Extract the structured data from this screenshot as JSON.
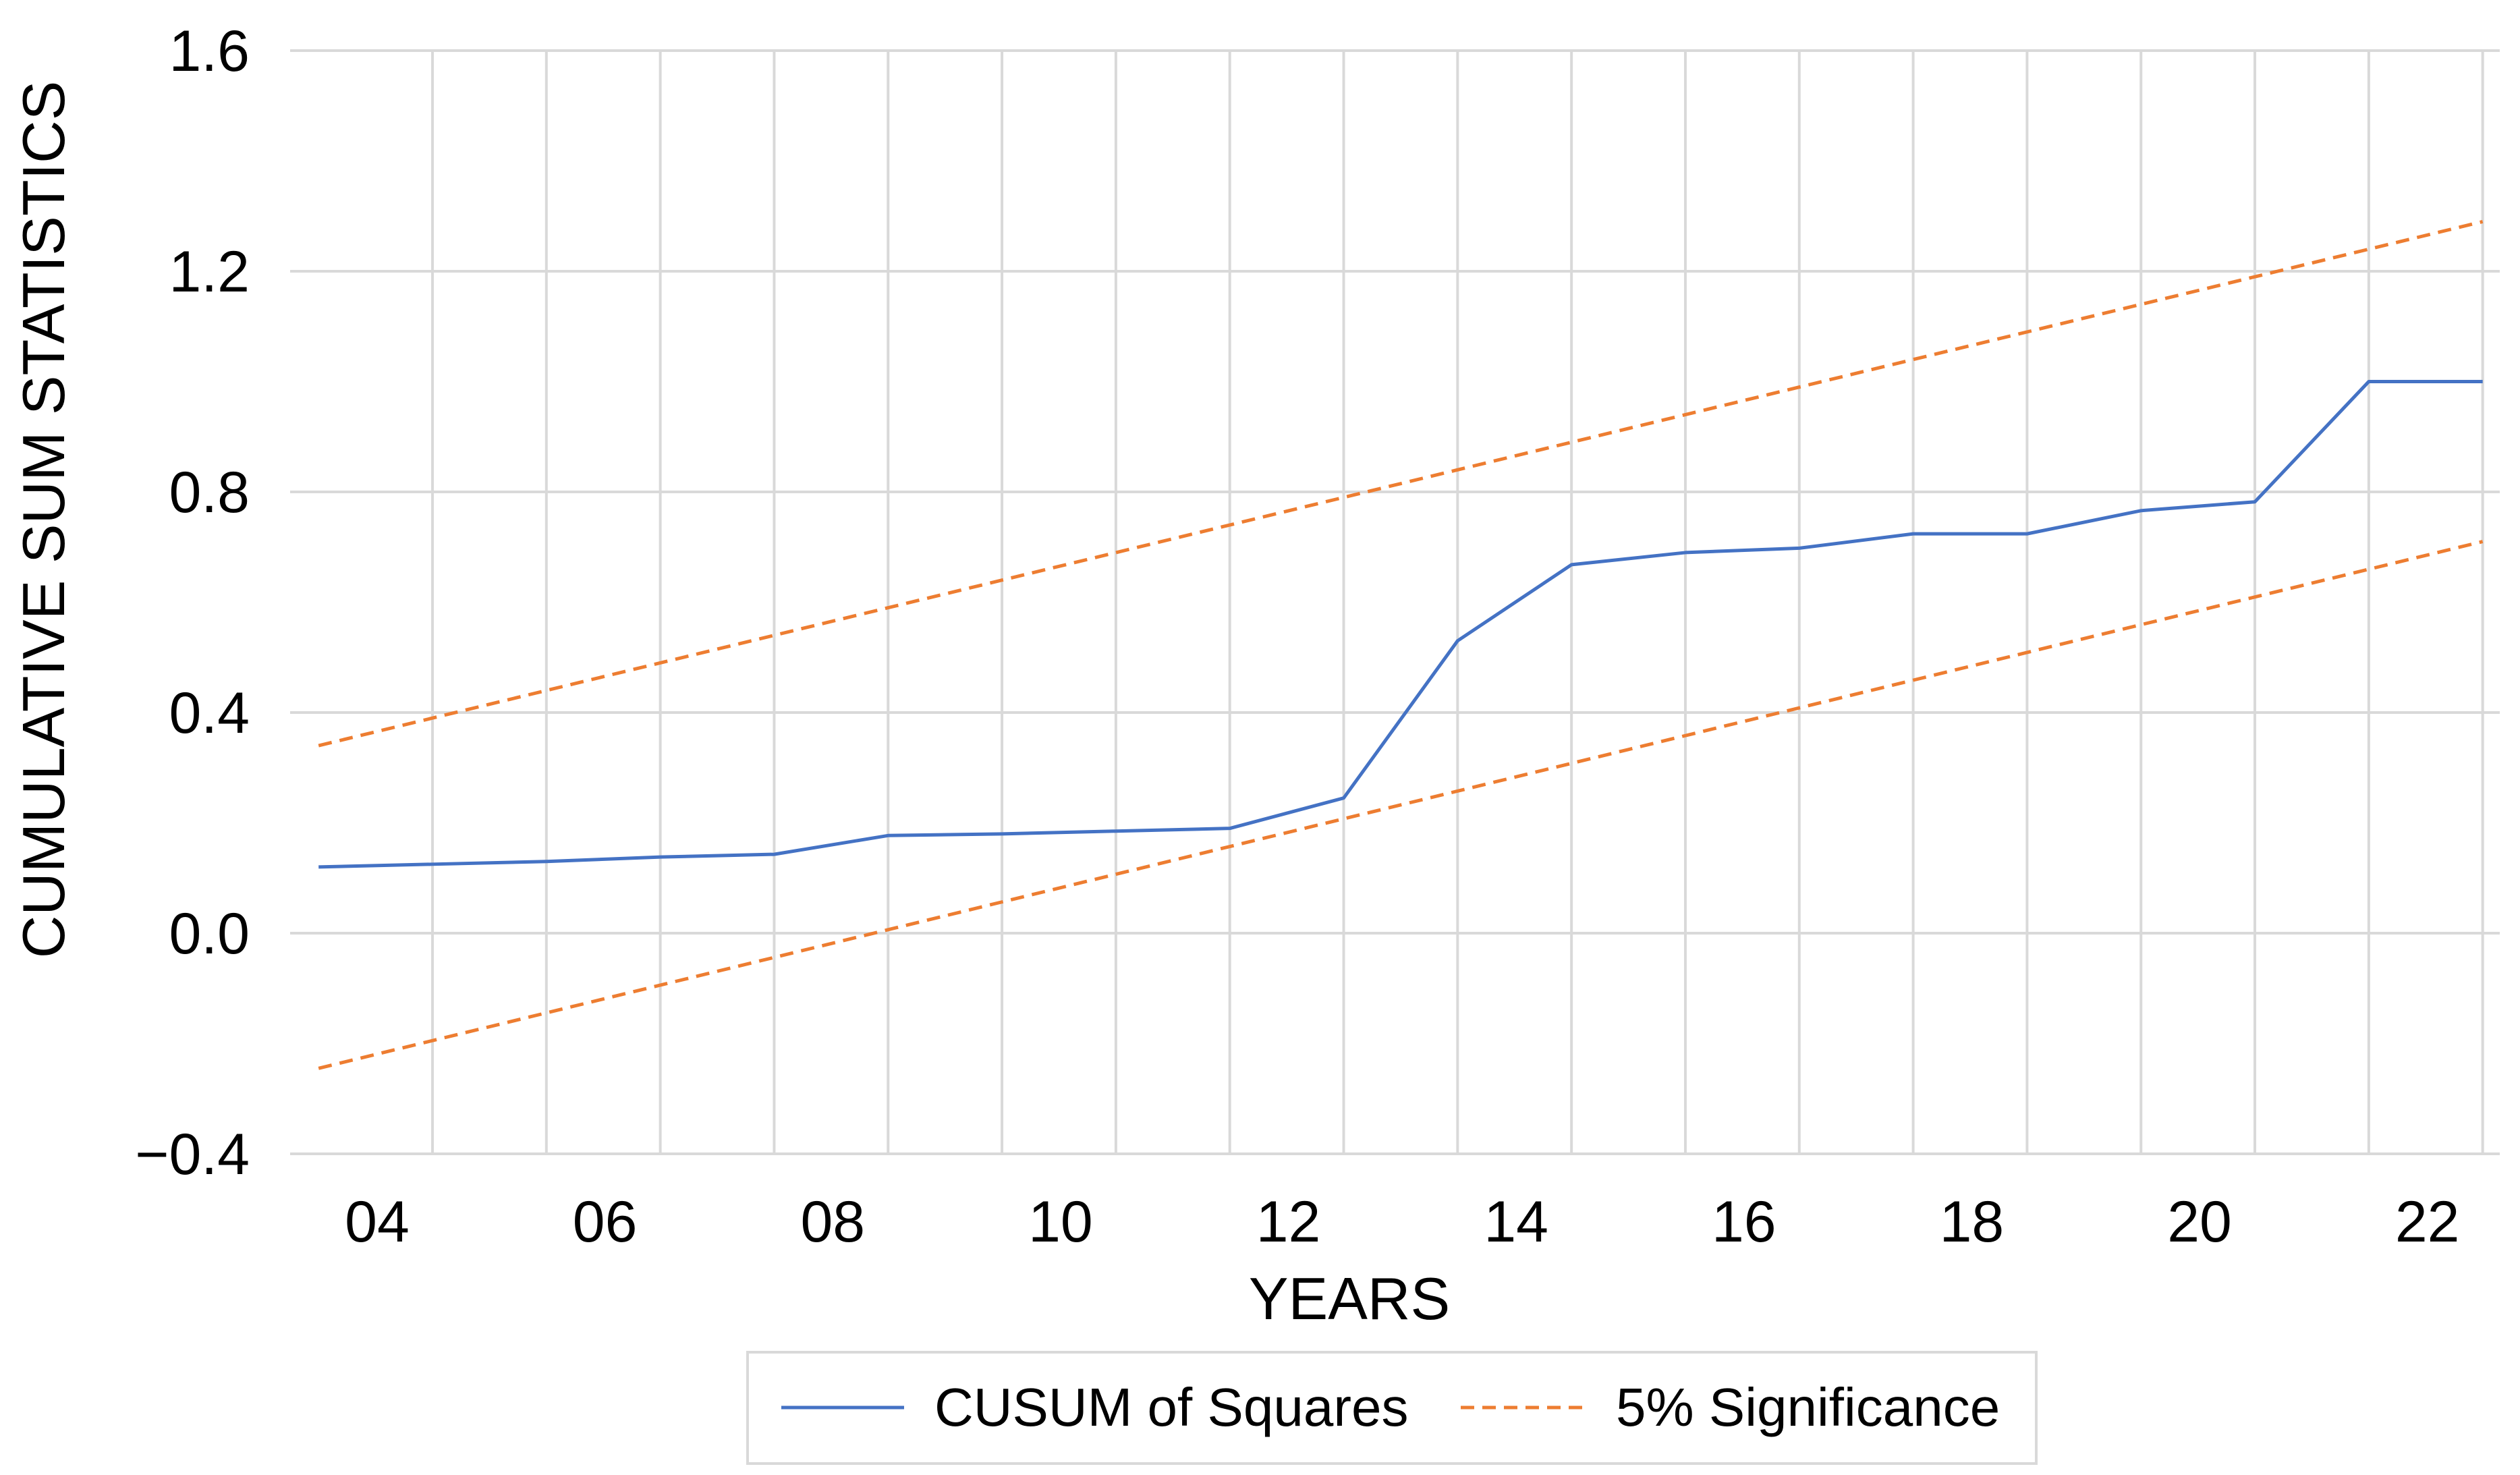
{
  "chart_data": {
    "type": "line",
    "title": "",
    "xlabel": "YEARS",
    "ylabel": "CUMULATIVE SUM STATISTICS",
    "x_range": [
      2003,
      2022
    ],
    "ylim": [
      -0.4,
      1.6
    ],
    "y_ticks": [
      "−0.4",
      "0.0",
      "0.4",
      "0.8",
      "1.2",
      "1.6"
    ],
    "y_tick_values": [
      -0.4,
      0.0,
      0.4,
      0.8,
      1.2,
      1.6
    ],
    "x_ticks": [
      "04",
      "06",
      "08",
      "10",
      "12",
      "14",
      "16",
      "18",
      "20",
      "22"
    ],
    "x_tick_values": [
      2004,
      2006,
      2008,
      2010,
      2012,
      2014,
      2016,
      2018,
      2020,
      2022
    ],
    "grid": "vertical-and-horizontal",
    "legend_position": "bottom",
    "series": [
      {
        "name": "CUSUM of Squares",
        "color": "#4472c4",
        "style": "solid",
        "x": [
          2003,
          2004,
          2005,
          2006,
          2007,
          2008,
          2009,
          2010,
          2011,
          2012,
          2013,
          2014,
          2015,
          2016,
          2017,
          2018,
          2019,
          2020,
          2021,
          2022
        ],
        "values": [
          0.12,
          0.125,
          0.13,
          0.138,
          0.143,
          0.177,
          0.18,
          0.185,
          0.19,
          0.245,
          0.53,
          0.668,
          0.69,
          0.698,
          0.724,
          0.724,
          0.766,
          0.782,
          1.0,
          1.0
        ]
      },
      {
        "name": "5% Significance",
        "color": "#ed7d31",
        "style": "dashed",
        "x": [
          2003,
          2022
        ],
        "values": [
          0.34,
          1.29
        ]
      },
      {
        "name": "",
        "color": "#ed7d31",
        "style": "dashed",
        "x": [
          2003,
          2022
        ],
        "values": [
          -0.245,
          0.71
        ]
      }
    ]
  }
}
